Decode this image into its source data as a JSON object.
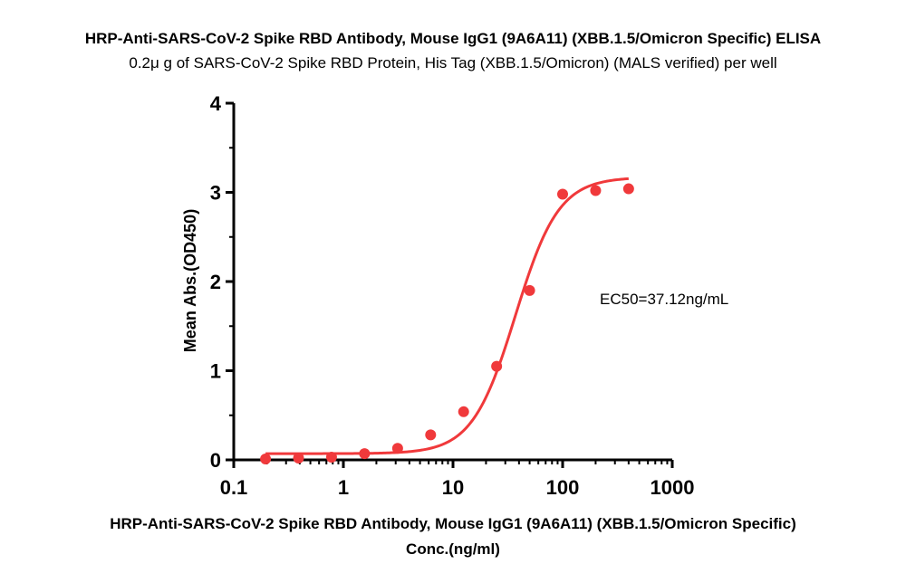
{
  "chart_data": {
    "type": "scatter",
    "title": "HRP-Anti-SARS-CoV-2 Spike RBD Antibody, Mouse IgG1 (9A6A11) (XBB.1.5/Omicron Specific) ELISA",
    "subtitle": "0.2μ g of SARS-CoV-2 Spike RBD Protein, His Tag (XBB.1.5/Omicron) (MALS verified) per well",
    "xlabel_line1": "HRP-Anti-SARS-CoV-2 Spike RBD Antibody, Mouse IgG1 (9A6A11) (XBB.1.5/Omicron Specific)",
    "xlabel_line2": "Conc.(ng/ml)",
    "ylabel": "Mean Abs.(OD450)",
    "x_scale": "log",
    "xlim": [
      0.1,
      1000
    ],
    "ylim": [
      0,
      4
    ],
    "x_ticks": [
      0.1,
      1,
      10,
      100,
      1000
    ],
    "x_tick_labels": [
      "0.1",
      "1",
      "10",
      "100",
      "1000"
    ],
    "y_ticks": [
      0,
      1,
      2,
      3,
      4
    ],
    "y_tick_labels": [
      "0",
      "1",
      "2",
      "3",
      "4"
    ],
    "color": "#f0393b",
    "series": [
      {
        "x": [
          0.195,
          0.39,
          0.78,
          1.56,
          3.125,
          6.25,
          12.5,
          25,
          50,
          100,
          200,
          400
        ],
        "y": [
          0.01,
          0.02,
          0.03,
          0.07,
          0.13,
          0.28,
          0.54,
          1.05,
          1.9,
          2.98,
          3.02,
          3.04
        ]
      }
    ],
    "fit": {
      "model": "4PL",
      "bottom": 0.07,
      "top": 3.17,
      "ec50": 37.12,
      "hill": 2.2
    },
    "annotation": "EC50=37.12ng/mL"
  }
}
